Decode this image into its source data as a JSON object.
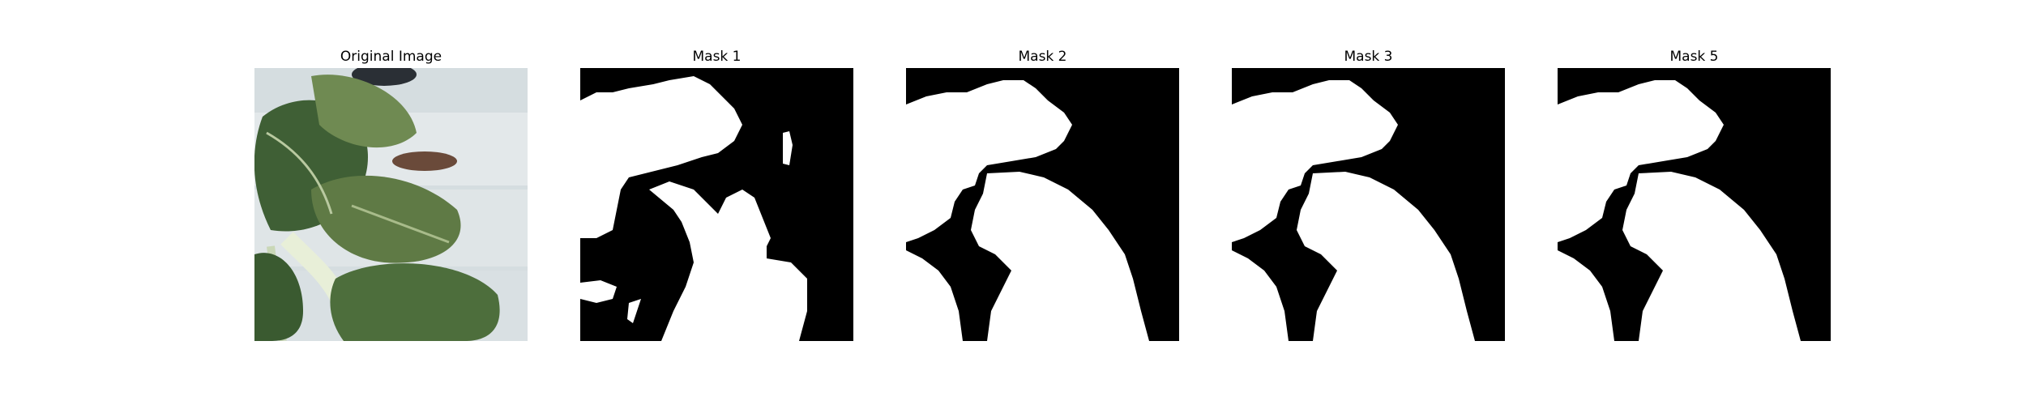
{
  "figure": {
    "panels": [
      {
        "title": "Original Image",
        "kind": "photo",
        "subject": "leafy-green-plant"
      },
      {
        "title": "Mask 1",
        "kind": "mask"
      },
      {
        "title": "Mask 2",
        "kind": "mask"
      },
      {
        "title": "Mask 3",
        "kind": "mask"
      },
      {
        "title": "Mask 5",
        "kind": "mask"
      }
    ]
  },
  "colors": {
    "mask_background": "#000000",
    "mask_foreground": "#ffffff",
    "photo_background": "#d5dde0",
    "leaf_dark": "#3f5f35",
    "leaf_mid": "#5f8048",
    "leaf_light": "#8da06a",
    "soil": "#6a4a3a"
  }
}
